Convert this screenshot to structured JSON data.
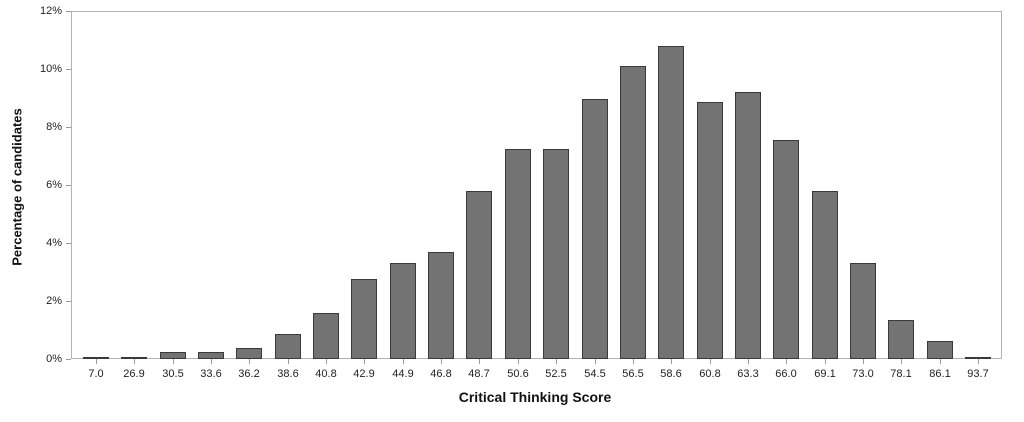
{
  "chart_data": {
    "type": "bar",
    "title": "",
    "xlabel": "Critical Thinking Score",
    "ylabel": "Percentage of candidates",
    "ylim": [
      0,
      12
    ],
    "yticks": [
      "0%",
      "2%",
      "4%",
      "6%",
      "8%",
      "10%",
      "12%"
    ],
    "ytick_values": [
      0,
      2,
      4,
      6,
      8,
      10,
      12
    ],
    "grid": false,
    "legend": null,
    "categories": [
      "7.0",
      "26.9",
      "30.5",
      "33.6",
      "36.2",
      "38.6",
      "40.8",
      "42.9",
      "44.9",
      "46.8",
      "48.7",
      "50.6",
      "52.5",
      "54.5",
      "56.5",
      "58.6",
      "60.8",
      "63.3",
      "66.0",
      "69.1",
      "73.0",
      "78.1",
      "86.1",
      "93.7"
    ],
    "values": [
      0.07,
      0.07,
      0.24,
      0.24,
      0.38,
      0.87,
      1.57,
      2.75,
      3.31,
      3.68,
      5.79,
      7.23,
      7.23,
      8.98,
      10.1,
      10.78,
      8.86,
      9.22,
      7.56,
      5.79,
      3.31,
      1.36,
      0.63,
      0.07
    ],
    "unit": "%",
    "colors": {
      "bar_fill": "#737373",
      "bar_edge": "#3a3a3a",
      "frame": "#b4b4b4"
    }
  }
}
